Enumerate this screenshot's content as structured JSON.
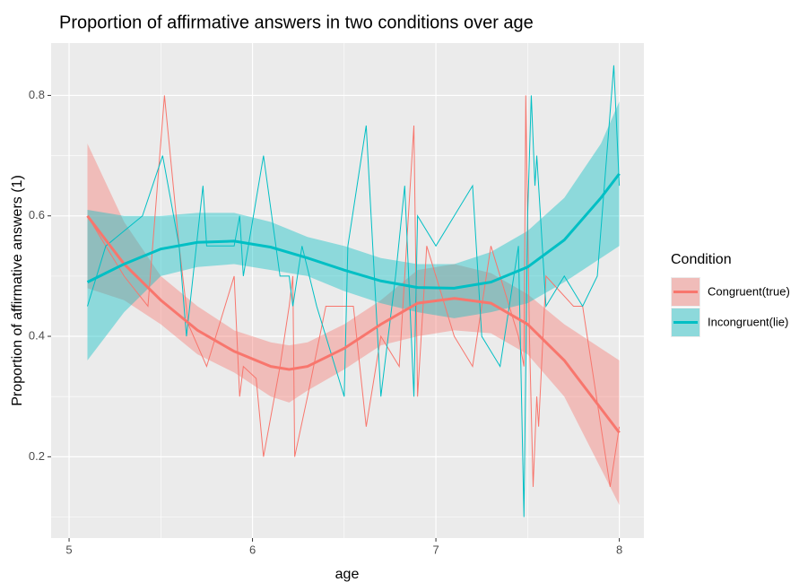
{
  "chart_data": {
    "type": "line",
    "title": "Proportion of affirmative answers in two conditions over age",
    "x_label": "age",
    "y_label": "Proportion of affirmative answers (1)",
    "legend_title": "Condition",
    "legend_position": "right",
    "grid": true,
    "xlim": [
      4.902,
      8.134
    ],
    "ylim": [
      0.065,
      0.887
    ],
    "xticks": [
      5,
      6,
      7,
      8
    ],
    "yticks": [
      0.2,
      0.4,
      0.6,
      0.8
    ],
    "x_minor_grid": [
      5.5,
      6.5,
      7.5
    ],
    "y_minor_grid": [
      0.1,
      0.3,
      0.5,
      0.7
    ],
    "series": [
      {
        "name": "Congruent(true)",
        "color": "#F8766D",
        "x": [
          5.1,
          5.2,
          5.3,
          5.43,
          5.52,
          5.6,
          5.65,
          5.75,
          5.9,
          5.93,
          5.95,
          6.02,
          6.06,
          6.15,
          6.2,
          6.22,
          6.23,
          6.3,
          6.4,
          6.55,
          6.62,
          6.7,
          6.8,
          6.88,
          6.9,
          6.95,
          7.05,
          7.1,
          7.2,
          7.3,
          7.45,
          7.48,
          7.49,
          7.51,
          7.53,
          7.55,
          7.56,
          7.6,
          7.75,
          7.8,
          7.95,
          8.0
        ],
        "values": [
          0.6,
          0.55,
          0.5,
          0.45,
          0.8,
          0.55,
          0.42,
          0.35,
          0.5,
          0.3,
          0.35,
          0.33,
          0.2,
          0.35,
          0.45,
          0.5,
          0.2,
          0.3,
          0.45,
          0.45,
          0.25,
          0.4,
          0.35,
          0.75,
          0.3,
          0.55,
          0.45,
          0.4,
          0.35,
          0.55,
          0.4,
          0.35,
          0.8,
          0.4,
          0.15,
          0.3,
          0.25,
          0.5,
          0.45,
          0.45,
          0.15,
          0.25
        ],
        "smooth": {
          "x": [
            5.1,
            5.3,
            5.5,
            5.7,
            5.9,
            6.1,
            6.2,
            6.3,
            6.5,
            6.7,
            6.9,
            7.1,
            7.3,
            7.5,
            7.7,
            7.9,
            8.0
          ],
          "values": [
            0.6,
            0.52,
            0.46,
            0.41,
            0.375,
            0.35,
            0.345,
            0.35,
            0.38,
            0.42,
            0.455,
            0.463,
            0.455,
            0.42,
            0.36,
            0.28,
            0.24
          ],
          "lower": [
            0.48,
            0.46,
            0.42,
            0.37,
            0.34,
            0.3,
            0.29,
            0.31,
            0.345,
            0.385,
            0.4,
            0.41,
            0.405,
            0.37,
            0.3,
            0.18,
            0.12
          ],
          "upper": [
            0.72,
            0.59,
            0.5,
            0.45,
            0.41,
            0.39,
            0.385,
            0.39,
            0.42,
            0.46,
            0.51,
            0.52,
            0.505,
            0.47,
            0.42,
            0.38,
            0.36
          ]
        }
      },
      {
        "name": "Incongruent(lie)",
        "color": "#00BFC4",
        "x": [
          5.1,
          5.2,
          5.4,
          5.51,
          5.6,
          5.64,
          5.73,
          5.75,
          5.9,
          5.93,
          5.95,
          6.06,
          6.15,
          6.2,
          6.22,
          6.27,
          6.35,
          6.5,
          6.52,
          6.62,
          6.7,
          6.78,
          6.83,
          6.88,
          6.9,
          7.0,
          7.2,
          7.25,
          7.35,
          7.45,
          7.48,
          7.5,
          7.52,
          7.54,
          7.55,
          7.6,
          7.7,
          7.8,
          7.88,
          7.97,
          8.0
        ],
        "values": [
          0.45,
          0.55,
          0.6,
          0.7,
          0.55,
          0.4,
          0.65,
          0.55,
          0.55,
          0.6,
          0.5,
          0.7,
          0.5,
          0.5,
          0.45,
          0.55,
          0.45,
          0.3,
          0.55,
          0.75,
          0.3,
          0.5,
          0.65,
          0.3,
          0.6,
          0.55,
          0.65,
          0.4,
          0.35,
          0.55,
          0.1,
          0.6,
          0.8,
          0.65,
          0.7,
          0.45,
          0.5,
          0.45,
          0.5,
          0.85,
          0.65
        ],
        "smooth": {
          "x": [
            5.1,
            5.3,
            5.5,
            5.7,
            5.9,
            6.1,
            6.3,
            6.5,
            6.7,
            6.9,
            7.1,
            7.3,
            7.5,
            7.7,
            7.9,
            8.0
          ],
          "values": [
            0.49,
            0.52,
            0.545,
            0.556,
            0.558,
            0.548,
            0.53,
            0.51,
            0.492,
            0.481,
            0.48,
            0.49,
            0.515,
            0.56,
            0.63,
            0.67
          ],
          "lower": [
            0.36,
            0.44,
            0.5,
            0.515,
            0.52,
            0.51,
            0.5,
            0.475,
            0.455,
            0.44,
            0.43,
            0.44,
            0.455,
            0.49,
            0.53,
            0.55
          ],
          "upper": [
            0.61,
            0.6,
            0.6,
            0.605,
            0.605,
            0.59,
            0.565,
            0.55,
            0.53,
            0.52,
            0.52,
            0.54,
            0.575,
            0.63,
            0.72,
            0.79
          ]
        }
      }
    ]
  }
}
